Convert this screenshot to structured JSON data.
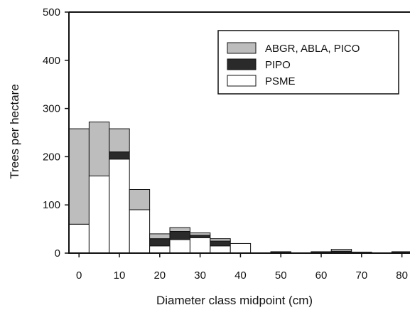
{
  "chart_data": {
    "type": "bar",
    "stacked": true,
    "xlabel": "Diameter class midpoint (cm)",
    "ylabel": "Trees per hectare",
    "ylim": [
      0,
      500
    ],
    "xlim": [
      -2.5,
      82
    ],
    "bin_width": 5,
    "x_ticks": [
      "0",
      "10",
      "20",
      "30",
      "40",
      "50",
      "60",
      "70",
      "80"
    ],
    "x_tick_values": [
      0,
      10,
      20,
      30,
      40,
      50,
      60,
      70,
      80
    ],
    "y_ticks": [
      "0",
      "100",
      "200",
      "300",
      "400",
      "500"
    ],
    "y_tick_values": [
      0,
      100,
      200,
      300,
      400,
      500
    ],
    "x": [
      0,
      5,
      10,
      15,
      20,
      25,
      30,
      35,
      40,
      45,
      50,
      55,
      60,
      65,
      70,
      75,
      80
    ],
    "series": [
      {
        "name": "PSME",
        "color": "#ffffff",
        "values": [
          60,
          160,
          195,
          90,
          15,
          28,
          32,
          15,
          20,
          0,
          0,
          0,
          0,
          0,
          0,
          0,
          0
        ]
      },
      {
        "name": "PIPO",
        "color": "#2a2a2a",
        "values": [
          0,
          0,
          15,
          0,
          15,
          17,
          5,
          10,
          0,
          0,
          3,
          0,
          3,
          4,
          2,
          0,
          3
        ]
      },
      {
        "name": "ABGR, ABLA, PICO",
        "color": "#bdbdbd",
        "values": [
          198,
          112,
          48,
          42,
          10,
          8,
          5,
          5,
          0,
          0,
          0,
          0,
          0,
          4,
          0,
          0,
          0
        ]
      }
    ],
    "legend": {
      "position": "top-right",
      "entries": [
        {
          "label": "ABGR, ABLA, PICO",
          "color": "#bdbdbd"
        },
        {
          "label": "PIPO",
          "color": "#2a2a2a"
        },
        {
          "label": "PSME",
          "color": "#ffffff"
        }
      ]
    },
    "grid": false
  }
}
